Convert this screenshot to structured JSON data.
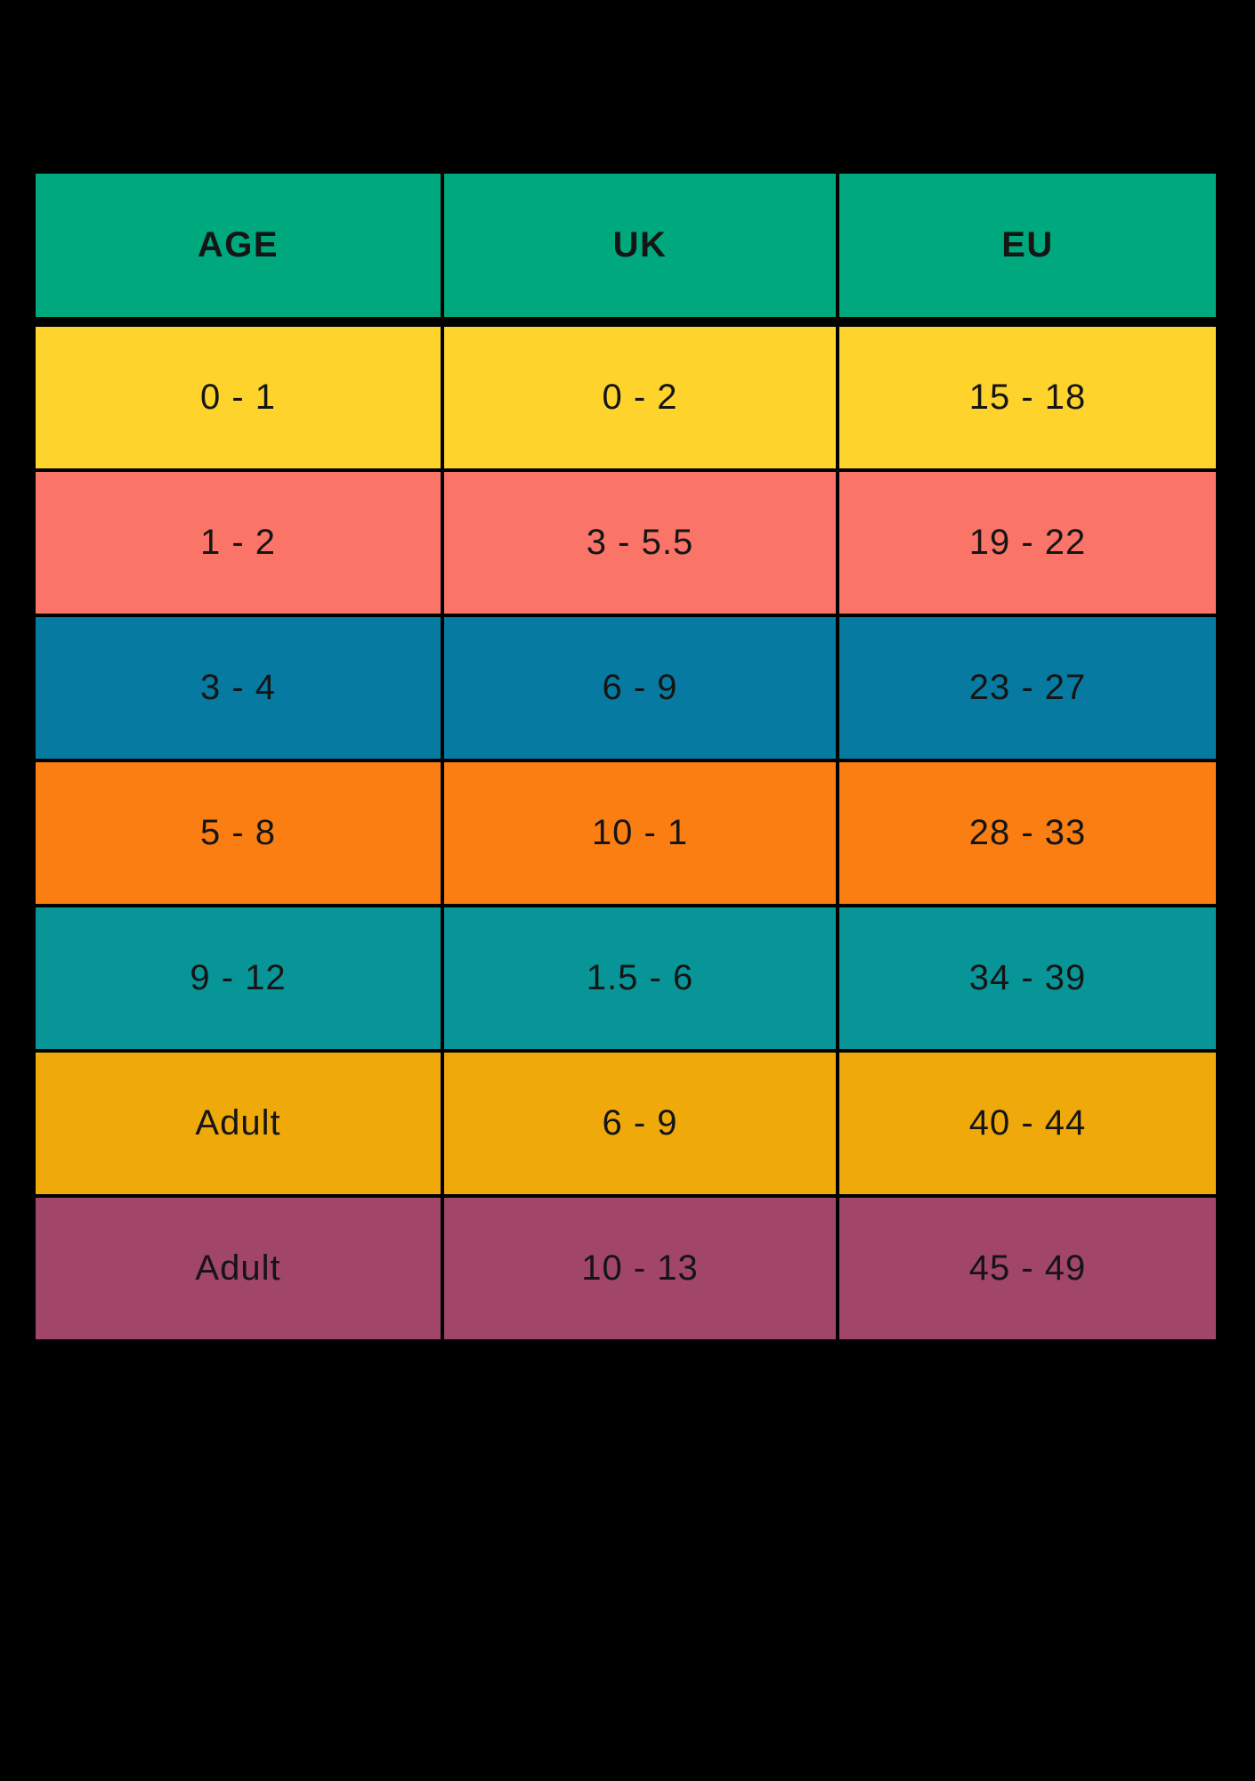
{
  "background_color": "#000000",
  "text_color": "#151515",
  "chart_data": {
    "type": "table",
    "columns": [
      "AGE",
      "UK",
      "EU"
    ],
    "header_color": "#00A87D",
    "legend_position": "none",
    "grid": "black 4px separators between colored cells on black background",
    "rows": [
      {
        "cells": [
          "0 - 1",
          "0 - 2",
          "15 - 18"
        ],
        "color": "#FDD32C"
      },
      {
        "cells": [
          "1 - 2",
          "3 - 5.5",
          "19 - 22"
        ],
        "color": "#FA7468"
      },
      {
        "cells": [
          "3 - 4",
          "6 - 9",
          "23 - 27"
        ],
        "color": "#067AA1"
      },
      {
        "cells": [
          "5 - 8",
          "10 - 1",
          "28 - 33"
        ],
        "color": "#FB7E13"
      },
      {
        "cells": [
          "9 - 12",
          "1.5 - 6",
          "34 - 39"
        ],
        "color": "#079598"
      },
      {
        "cells": [
          "Adult",
          "6 - 9",
          "40 - 44"
        ],
        "color": "#F0A90B"
      },
      {
        "cells": [
          "Adult",
          "10 - 13",
          "45 - 49"
        ],
        "color": "#A14569"
      }
    ]
  }
}
